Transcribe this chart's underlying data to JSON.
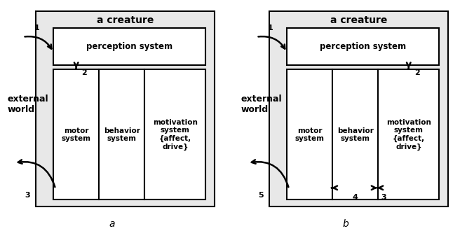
{
  "fig_width": 6.66,
  "fig_height": 3.3,
  "dpi": 100,
  "bg_outer": "#e8e8e8",
  "box_white": "#ffffff",
  "border_color": "#000000",
  "text_color": "#000000",
  "label_a": "a",
  "label_b": "b",
  "title": "a creature",
  "ext_world": "external\nworld",
  "perc_text": "perception system",
  "motor_text": "motor\nsystem",
  "behavior_text": "behavior\nsystem",
  "motiv_text": "motivation\nsystem\n{affect,\ndrive}"
}
